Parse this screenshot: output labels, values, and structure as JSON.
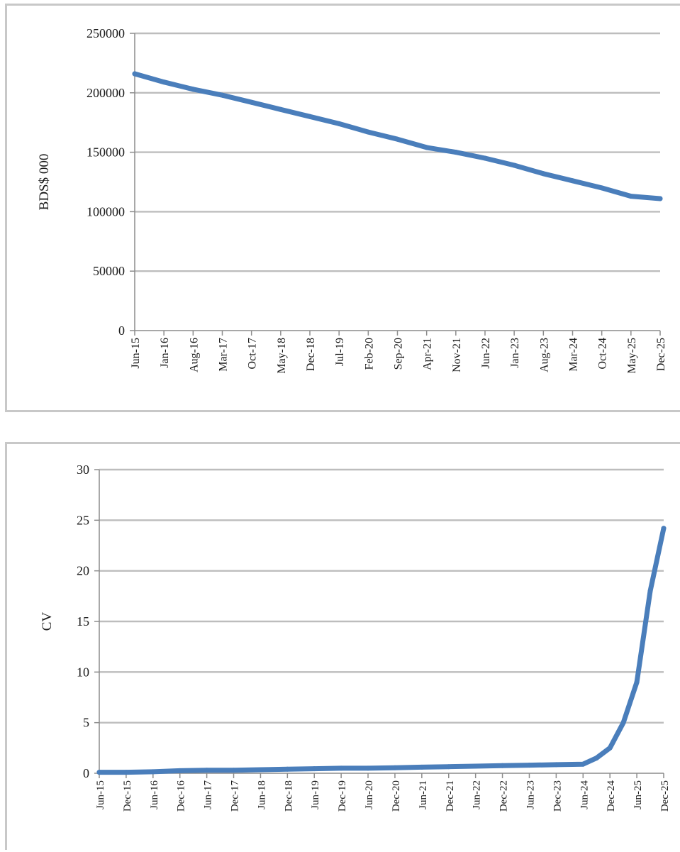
{
  "chart_data": [
    {
      "type": "line",
      "title": "",
      "xlabel": "",
      "ylabel": "BDS$ 000",
      "ylim": [
        0,
        250000
      ],
      "yticks": [
        0,
        50000,
        100000,
        150000,
        200000,
        250000
      ],
      "ytick_labels": [
        "0",
        "50000",
        "100000",
        "150000",
        "200000",
        "250000"
      ],
      "xticks": [
        "Jun-15",
        "Jan-16",
        "Aug-16",
        "Mar-17",
        "Oct-17",
        "May-18",
        "Dec-18",
        "Jul-19",
        "Feb-20",
        "Sep-20",
        "Apr-21",
        "Nov-21",
        "Jun-22",
        "Jan-23",
        "Aug-23",
        "Mar-24",
        "Oct-24",
        "May-25",
        "Dec-25"
      ],
      "grid": true,
      "legend": "none",
      "color": "#4a7ebb",
      "series": [
        {
          "x": [
            "Jun-15",
            "Jan-16",
            "Aug-16",
            "Mar-17",
            "Oct-17",
            "May-18",
            "Dec-18",
            "Jul-19",
            "Feb-20",
            "Sep-20",
            "Apr-21",
            "Nov-21",
            "Jun-22",
            "Jan-23",
            "Aug-23",
            "Mar-24",
            "Oct-24",
            "May-25",
            "Dec-25"
          ],
          "values": [
            216000,
            209000,
            203000,
            198000,
            192000,
            186000,
            180000,
            174000,
            167000,
            161000,
            154000,
            150000,
            145000,
            139000,
            132000,
            126000,
            120000,
            113000,
            111000
          ]
        }
      ]
    },
    {
      "type": "line",
      "title": "",
      "xlabel": "",
      "ylabel": "CV",
      "ylim": [
        0,
        30
      ],
      "yticks": [
        0,
        5,
        10,
        15,
        20,
        25,
        30
      ],
      "ytick_labels": [
        "0",
        "5",
        "10",
        "15",
        "20",
        "25",
        "30"
      ],
      "xticks": [
        "Jun-15",
        "Dec-15",
        "Jun-16",
        "Dec-16",
        "Jun-17",
        "Dec-17",
        "Jun-18",
        "Dec-18",
        "Jun-19",
        "Dec-19",
        "Jun-20",
        "Dec-20",
        "Jun-21",
        "Dec-21",
        "Jun-22",
        "Dec-22",
        "Jun-23",
        "Dec-23",
        "Jun-24",
        "Dec-24",
        "Jun-25",
        "Dec-25"
      ],
      "grid": true,
      "legend": "none",
      "color": "#4a7ebb",
      "series": [
        {
          "x": [
            "Jun-15",
            "Dec-15",
            "Jun-16",
            "Dec-16",
            "Jun-17",
            "Dec-17",
            "Jun-18",
            "Dec-18",
            "Jun-19",
            "Dec-19",
            "Jun-20",
            "Dec-20",
            "Jun-21",
            "Dec-21",
            "Jun-22",
            "Dec-22",
            "Jun-23",
            "Dec-23",
            "Jun-24",
            "Sep-24",
            "Dec-24",
            "Mar-25",
            "Jun-25",
            "Sep-25",
            "Dec-25"
          ],
          "values": [
            0.1,
            0.1,
            0.15,
            0.25,
            0.3,
            0.3,
            0.35,
            0.4,
            0.45,
            0.5,
            0.5,
            0.55,
            0.6,
            0.65,
            0.7,
            0.75,
            0.8,
            0.85,
            0.9,
            1.5,
            2.5,
            5,
            9,
            18,
            24.2
          ]
        }
      ]
    }
  ]
}
